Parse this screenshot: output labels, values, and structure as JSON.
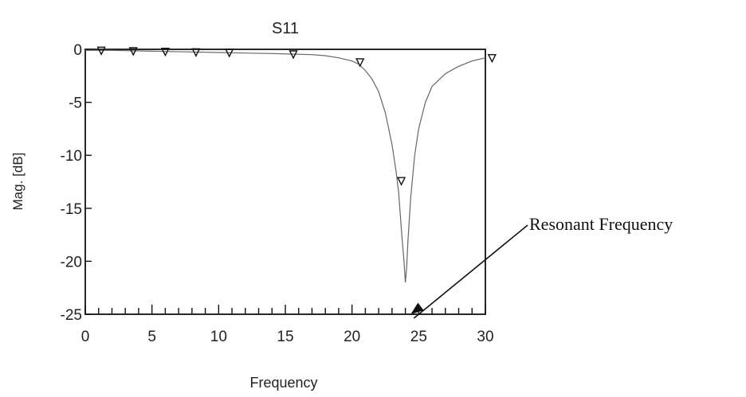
{
  "chart_data": {
    "type": "line",
    "title": "S11",
    "xlabel": "Frequency",
    "ylabel": "Mag. [dB]",
    "xlim": [
      0,
      30
    ],
    "ylim": [
      -25,
      0
    ],
    "x_ticks": [
      "0",
      "5",
      "10",
      "15",
      "20",
      "25",
      "30"
    ],
    "y_ticks": [
      "0",
      "-5",
      "-10",
      "-15",
      "-20",
      "-25"
    ],
    "grid": false,
    "series": [
      {
        "x": [
          0,
          2,
          4,
          6,
          8,
          10,
          12,
          14,
          15.5,
          17,
          18,
          19,
          20,
          20.5,
          21,
          21.5,
          22,
          22.5,
          23,
          23.3,
          23.5,
          23.7,
          23.9,
          24.0,
          24.1,
          24.2,
          24.4,
          24.7,
          25,
          25.5,
          26,
          27,
          28,
          29,
          30
        ],
        "y": [
          -0.1,
          -0.1,
          -0.15,
          -0.2,
          -0.25,
          -0.3,
          -0.35,
          -0.4,
          -0.45,
          -0.5,
          -0.6,
          -0.8,
          -1.1,
          -1.4,
          -2.0,
          -2.8,
          -4.0,
          -6.0,
          -9.0,
          -11.5,
          -13.5,
          -17.0,
          -20.0,
          -22.0,
          -20.5,
          -18.0,
          -14.0,
          -10.0,
          -7.5,
          -5.0,
          -3.5,
          -2.3,
          -1.6,
          -1.1,
          -0.8
        ]
      }
    ],
    "markers": {
      "x": [
        1.2,
        3.6,
        6,
        8.3,
        10.8,
        15.6,
        20.6,
        23.7,
        30.5
      ],
      "y": [
        -0.1,
        -0.15,
        -0.2,
        -0.25,
        -0.3,
        -0.45,
        -1.2,
        -12.4,
        -0.8
      ]
    },
    "annotation": {
      "text": "Resonant Frequency",
      "x": 24.4,
      "y": -25
    }
  }
}
